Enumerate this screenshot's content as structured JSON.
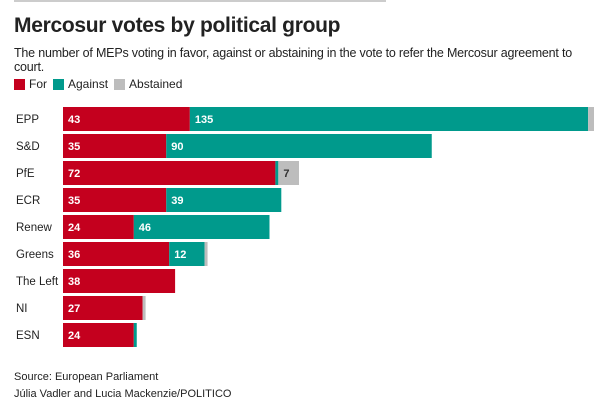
{
  "title": "Mercosur votes by political group",
  "subtitle": "The number of MEPs voting in favor, against or abstaining in the vote to refer the Mercosur agreement to court.",
  "source": "Source: European Parliament",
  "credit": "Júlia Vadler and Lucia Mackenzie/POLITICO",
  "chart_data": {
    "type": "bar",
    "orientation": "horizontal",
    "stacked": true,
    "grid": false,
    "legend_position": "top-left",
    "categories": [
      "EPP",
      "S&D",
      "PfE",
      "ECR",
      "Renew",
      "Greens",
      "The Left",
      "NI",
      "ESN"
    ],
    "series": [
      {
        "name": "For",
        "color": "#c4001e",
        "values": [
          43,
          35,
          72,
          35,
          24,
          36,
          38,
          27,
          24
        ]
      },
      {
        "name": "Against",
        "color": "#009a8c",
        "values": [
          135,
          90,
          1,
          39,
          46,
          12,
          0,
          0,
          1
        ]
      },
      {
        "name": "Abstained",
        "color": "#bdbdbd",
        "values": [
          2,
          0,
          7,
          0,
          0,
          1,
          0,
          1,
          0
        ]
      }
    ]
  }
}
